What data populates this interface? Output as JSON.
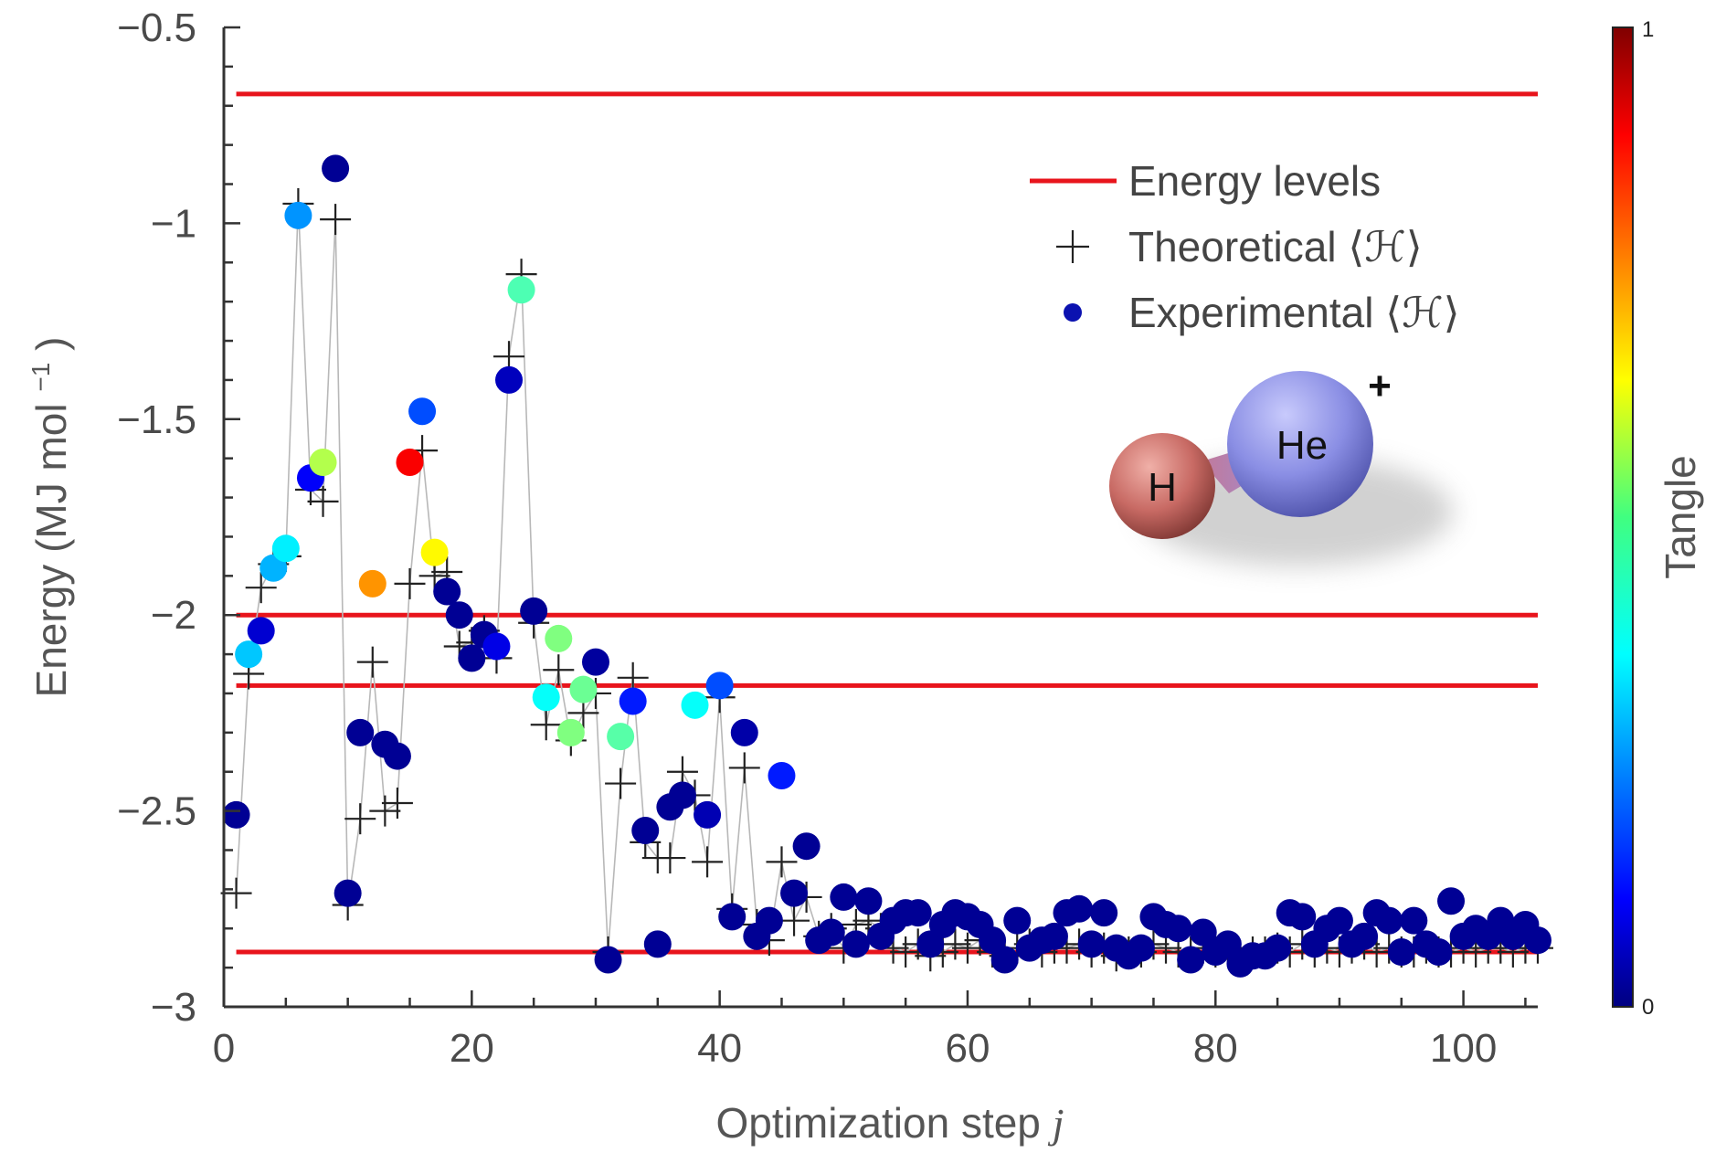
{
  "chart_data": {
    "type": "scatter",
    "xlabel": "Optimization step",
    "xlabel_var": "j",
    "ylabel": "Energy (MJ mol",
    "ylabel_sup": "−1",
    "ylabel_close": ")",
    "xlim": [
      0,
      106
    ],
    "ylim": [
      -3,
      -0.5
    ],
    "x_ticks": [
      0,
      20,
      40,
      60,
      80,
      100
    ],
    "x_tick_labels": [
      "0",
      "20",
      "40",
      "60",
      "80",
      "100"
    ],
    "y_ticks": [
      -3,
      -2.5,
      -2,
      -1.5,
      -1,
      -0.5
    ],
    "y_tick_labels": [
      "−3",
      "−2.5",
      "−2",
      "−1.5",
      "−1",
      "−0.5"
    ],
    "energy_levels": [
      -0.67,
      -2.0,
      -2.18,
      -2.86
    ],
    "legend": {
      "placement": "top-right",
      "entries": [
        {
          "label": "Energy levels",
          "marker": "line",
          "color": "#e8141c"
        },
        {
          "label": "Theoretical ⟨ℋ⟩",
          "marker": "plus",
          "color": "#222222"
        },
        {
          "label": "Experimental ⟨ℋ⟩",
          "marker": "circle",
          "color": "#0b12b0"
        }
      ]
    },
    "colorbar": {
      "label": "Tangle",
      "min_label": "0",
      "max_label": "1",
      "colormap": "jet"
    },
    "molecule": {
      "atom1": "H",
      "atom2": "He",
      "charge": "+"
    },
    "series": [
      {
        "name": "Theoretical ⟨ℋ⟩",
        "points": [
          [
            1,
            -2.71
          ],
          [
            2,
            -2.15
          ],
          [
            3,
            -1.93
          ],
          [
            4,
            -1.87
          ],
          [
            5,
            -1.85
          ],
          [
            6,
            -0.95
          ],
          [
            7,
            -1.68
          ],
          [
            8,
            -1.71
          ],
          [
            9,
            -0.99
          ],
          [
            10,
            -2.74
          ],
          [
            11,
            -2.52
          ],
          [
            12,
            -2.12
          ],
          [
            13,
            -2.5
          ],
          [
            14,
            -2.48
          ],
          [
            15,
            -1.92
          ],
          [
            16,
            -1.58
          ],
          [
            17,
            -1.9
          ],
          [
            18,
            -1.89
          ],
          [
            19,
            -2.08
          ],
          [
            20,
            -2.07
          ],
          [
            21,
            -2.04
          ],
          [
            22,
            -2.11
          ],
          [
            23,
            -1.34
          ],
          [
            24,
            -1.13
          ],
          [
            25,
            -2.02
          ],
          [
            26,
            -2.28
          ],
          [
            27,
            -2.14
          ],
          [
            28,
            -2.32
          ],
          [
            29,
            -2.25
          ],
          [
            30,
            -2.2
          ],
          [
            31,
            -2.86
          ],
          [
            32,
            -2.43
          ],
          [
            33,
            -2.16
          ],
          [
            34,
            -2.58
          ],
          [
            35,
            -2.62
          ],
          [
            36,
            -2.62
          ],
          [
            37,
            -2.4
          ],
          [
            38,
            -2.46
          ],
          [
            39,
            -2.63
          ],
          [
            40,
            -2.21
          ],
          [
            41,
            -2.75
          ],
          [
            42,
            -2.39
          ],
          [
            43,
            -2.79
          ],
          [
            44,
            -2.83
          ],
          [
            45,
            -2.63
          ],
          [
            46,
            -2.78
          ],
          [
            47,
            -2.72
          ],
          [
            48,
            -2.82
          ],
          [
            49,
            -2.8
          ],
          [
            50,
            -2.85
          ],
          [
            51,
            -2.79
          ],
          [
            52,
            -2.78
          ],
          [
            53,
            -2.8
          ],
          [
            54,
            -2.85
          ],
          [
            55,
            -2.86
          ],
          [
            56,
            -2.84
          ],
          [
            57,
            -2.87
          ],
          [
            58,
            -2.86
          ],
          [
            59,
            -2.84
          ],
          [
            60,
            -2.85
          ],
          [
            61,
            -2.83
          ],
          [
            62,
            -2.86
          ],
          [
            63,
            -2.87
          ],
          [
            64,
            -2.85
          ],
          [
            65,
            -2.84
          ],
          [
            66,
            -2.86
          ],
          [
            67,
            -2.85
          ],
          [
            68,
            -2.85
          ],
          [
            69,
            -2.84
          ],
          [
            70,
            -2.86
          ],
          [
            71,
            -2.85
          ],
          [
            72,
            -2.87
          ],
          [
            73,
            -2.86
          ],
          [
            74,
            -2.86
          ],
          [
            75,
            -2.84
          ],
          [
            76,
            -2.85
          ],
          [
            77,
            -2.86
          ],
          [
            78,
            -2.86
          ],
          [
            79,
            -2.85
          ],
          [
            80,
            -2.86
          ],
          [
            81,
            -2.85
          ],
          [
            82,
            -2.87
          ],
          [
            83,
            -2.86
          ],
          [
            84,
            -2.86
          ],
          [
            85,
            -2.85
          ],
          [
            86,
            -2.86
          ],
          [
            87,
            -2.84
          ],
          [
            88,
            -2.86
          ],
          [
            89,
            -2.85
          ],
          [
            90,
            -2.86
          ],
          [
            91,
            -2.85
          ],
          [
            92,
            -2.84
          ],
          [
            93,
            -2.86
          ],
          [
            94,
            -2.85
          ],
          [
            95,
            -2.86
          ],
          [
            96,
            -2.86
          ],
          [
            97,
            -2.85
          ],
          [
            98,
            -2.86
          ],
          [
            99,
            -2.86
          ],
          [
            100,
            -2.85
          ],
          [
            101,
            -2.86
          ],
          [
            102,
            -2.85
          ],
          [
            103,
            -2.85
          ],
          [
            104,
            -2.86
          ],
          [
            105,
            -2.85
          ],
          [
            106,
            -2.85
          ]
        ]
      },
      {
        "name": "Experimental ⟨ℋ⟩",
        "points": [
          [
            1,
            -2.51,
            0.02
          ],
          [
            2,
            -2.1,
            0.32
          ],
          [
            3,
            -2.04,
            0.08
          ],
          [
            4,
            -1.88,
            0.3
          ],
          [
            5,
            -1.83,
            0.36
          ],
          [
            6,
            -0.98,
            0.27
          ],
          [
            7,
            -1.65,
            0.12
          ],
          [
            8,
            -1.61,
            0.55
          ],
          [
            9,
            -0.86,
            0.02
          ],
          [
            10,
            -2.71,
            0.02
          ],
          [
            11,
            -2.3,
            0.02
          ],
          [
            12,
            -1.92,
            0.73
          ],
          [
            13,
            -2.33,
            0.02
          ],
          [
            14,
            -2.36,
            0.02
          ],
          [
            15,
            -1.61,
            0.88
          ],
          [
            16,
            -1.48,
            0.2
          ],
          [
            17,
            -1.84,
            0.63
          ],
          [
            18,
            -1.94,
            0.02
          ],
          [
            19,
            -2.0,
            0.02
          ],
          [
            20,
            -2.11,
            0.02
          ],
          [
            21,
            -2.05,
            0.02
          ],
          [
            22,
            -2.08,
            0.1
          ],
          [
            23,
            -1.4,
            0.06
          ],
          [
            24,
            -1.17,
            0.45
          ],
          [
            25,
            -1.99,
            0.02
          ],
          [
            26,
            -2.21,
            0.38
          ],
          [
            27,
            -2.06,
            0.5
          ],
          [
            28,
            -2.3,
            0.5
          ],
          [
            29,
            -2.19,
            0.48
          ],
          [
            30,
            -2.12,
            0.03
          ],
          [
            31,
            -2.88,
            0.02
          ],
          [
            32,
            -2.31,
            0.46
          ],
          [
            33,
            -2.22,
            0.15
          ],
          [
            34,
            -2.55,
            0.02
          ],
          [
            35,
            -2.84,
            0.02
          ],
          [
            36,
            -2.49,
            0.02
          ],
          [
            37,
            -2.46,
            0.02
          ],
          [
            38,
            -2.23,
            0.38
          ],
          [
            39,
            -2.51,
            0.05
          ],
          [
            40,
            -2.18,
            0.2
          ],
          [
            41,
            -2.77,
            0.02
          ],
          [
            42,
            -2.3,
            0.04
          ],
          [
            43,
            -2.82,
            0.02
          ],
          [
            44,
            -2.78,
            0.02
          ],
          [
            45,
            -2.41,
            0.15
          ],
          [
            46,
            -2.71,
            0.02
          ],
          [
            47,
            -2.59,
            0.02
          ],
          [
            48,
            -2.83,
            0.02
          ],
          [
            49,
            -2.81,
            0.02
          ],
          [
            50,
            -2.72,
            0.02
          ],
          [
            51,
            -2.84,
            0.02
          ],
          [
            52,
            -2.73,
            0.02
          ],
          [
            53,
            -2.82,
            0.02
          ],
          [
            54,
            -2.78,
            0.02
          ],
          [
            55,
            -2.76,
            0.02
          ],
          [
            56,
            -2.76,
            0.02
          ],
          [
            57,
            -2.84,
            0.02
          ],
          [
            58,
            -2.79,
            0.02
          ],
          [
            59,
            -2.76,
            0.02
          ],
          [
            60,
            -2.77,
            0.02
          ],
          [
            61,
            -2.79,
            0.02
          ],
          [
            62,
            -2.83,
            0.02
          ],
          [
            63,
            -2.88,
            0.02
          ],
          [
            64,
            -2.78,
            0.02
          ],
          [
            65,
            -2.85,
            0.02
          ],
          [
            66,
            -2.83,
            0.02
          ],
          [
            67,
            -2.82,
            0.02
          ],
          [
            68,
            -2.76,
            0.02
          ],
          [
            69,
            -2.75,
            0.02
          ],
          [
            70,
            -2.84,
            0.02
          ],
          [
            71,
            -2.76,
            0.02
          ],
          [
            72,
            -2.85,
            0.02
          ],
          [
            73,
            -2.87,
            0.02
          ],
          [
            74,
            -2.85,
            0.02
          ],
          [
            75,
            -2.77,
            0.02
          ],
          [
            76,
            -2.79,
            0.02
          ],
          [
            77,
            -2.8,
            0.02
          ],
          [
            78,
            -2.88,
            0.02
          ],
          [
            79,
            -2.81,
            0.02
          ],
          [
            80,
            -2.86,
            0.02
          ],
          [
            81,
            -2.84,
            0.02
          ],
          [
            82,
            -2.89,
            0.02
          ],
          [
            83,
            -2.87,
            0.02
          ],
          [
            84,
            -2.87,
            0.02
          ],
          [
            85,
            -2.85,
            0.02
          ],
          [
            86,
            -2.76,
            0.02
          ],
          [
            87,
            -2.77,
            0.02
          ],
          [
            88,
            -2.84,
            0.02
          ],
          [
            89,
            -2.8,
            0.02
          ],
          [
            90,
            -2.78,
            0.02
          ],
          [
            91,
            -2.84,
            0.02
          ],
          [
            92,
            -2.82,
            0.02
          ],
          [
            93,
            -2.76,
            0.02
          ],
          [
            94,
            -2.78,
            0.02
          ],
          [
            95,
            -2.86,
            0.02
          ],
          [
            96,
            -2.78,
            0.02
          ],
          [
            97,
            -2.84,
            0.02
          ],
          [
            98,
            -2.86,
            0.02
          ],
          [
            99,
            -2.73,
            0.02
          ],
          [
            100,
            -2.82,
            0.02
          ],
          [
            101,
            -2.8,
            0.02
          ],
          [
            102,
            -2.82,
            0.02
          ],
          [
            103,
            -2.78,
            0.02
          ],
          [
            104,
            -2.82,
            0.02
          ],
          [
            105,
            -2.79,
            0.02
          ],
          [
            106,
            -2.83,
            0.02
          ]
        ]
      }
    ]
  }
}
